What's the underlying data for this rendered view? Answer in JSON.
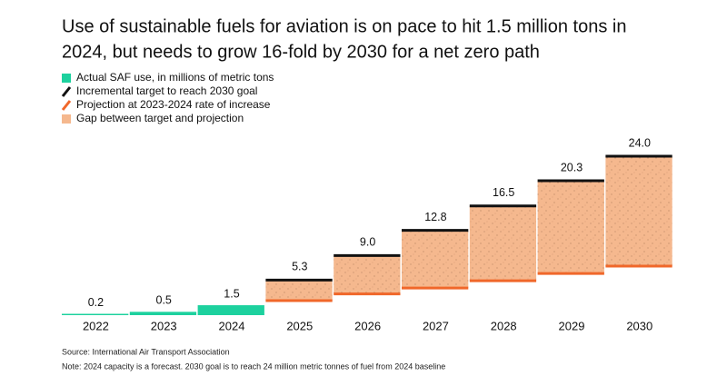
{
  "chart_data": {
    "type": "bar",
    "title_lines": [
      "Use of sustainable fuels for aviation is on pace to hit 1.5 million tons in",
      "2024, but needs to grow 16-fold by 2030 for a net zero path"
    ],
    "categories": [
      "2022",
      "2023",
      "2024",
      "2025",
      "2026",
      "2027",
      "2028",
      "2029",
      "2030"
    ],
    "series": [
      {
        "name": "Actual SAF use, in millions of metric tons",
        "color": "#1dd19e",
        "values": [
          0.2,
          0.5,
          1.5,
          null,
          null,
          null,
          null,
          null,
          null
        ],
        "value_labels": [
          "0.2",
          "0.5",
          "1.5",
          null,
          null,
          null,
          null,
          null,
          null
        ]
      },
      {
        "name": "Incremental target to reach 2030 goal",
        "color": "#111111",
        "values": [
          null,
          null,
          null,
          5.3,
          9.0,
          12.8,
          16.5,
          20.3,
          24.0
        ],
        "value_labels": [
          null,
          null,
          null,
          "5.3",
          "9.0",
          "12.8",
          "16.5",
          "20.3",
          "24.0"
        ]
      },
      {
        "name": "Projection at 2023-2024 rate of increase",
        "color": "#f0672a",
        "values": [
          null,
          null,
          null,
          2.2,
          3.2,
          4.1,
          5.2,
          6.3,
          7.4
        ]
      }
    ],
    "gap": {
      "name": "Gap between target and projection",
      "color": "#f5b88e"
    },
    "source": "Source: International Air Transport Association",
    "note": "Note: 2024 capacity is a forecast. 2030 goal is to reach 24 million metric tonnes of fuel from 2024 baseline"
  }
}
